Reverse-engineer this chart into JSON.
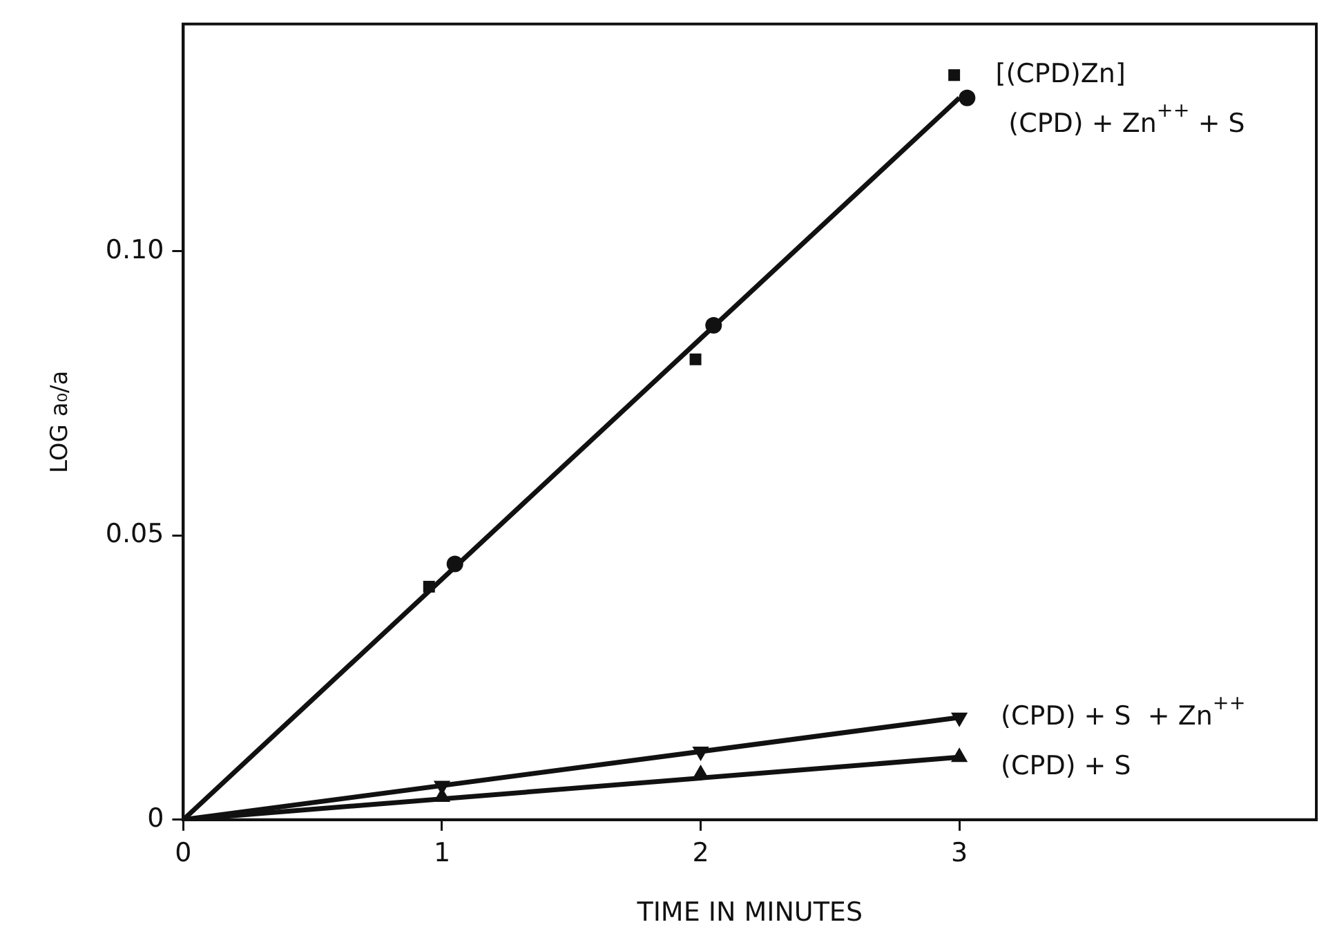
{
  "chart_data": {
    "type": "scatter",
    "xlabel": "TIME IN MINUTES",
    "ylabel": "LOG a₀/a",
    "xlim": [
      0,
      4.38
    ],
    "xticks": [
      0,
      1,
      2,
      3
    ],
    "ylim": [
      0,
      0.14
    ],
    "yticks": [
      0,
      0.05,
      {
        "value": 0.1,
        "label": "0.10"
      }
    ],
    "grid": false,
    "legend": false,
    "series": [
      {
        "name": "[(CPD)Zn]",
        "marker": "square",
        "color": "#111111",
        "x": [
          0.95,
          1.98,
          2.98
        ],
        "values": [
          0.041,
          0.081,
          0.131
        ]
      },
      {
        "name": "(CPD) + Zn$^{++}$ + S",
        "marker": "circle",
        "color": "#111111",
        "x": [
          1.05,
          2.05,
          3.03
        ],
        "values": [
          0.045,
          0.087,
          0.127
        ]
      },
      {
        "name": "(CPD) + S  + Zn$^{++}$",
        "marker": "triangle-down",
        "color": "#111111",
        "x": [
          1,
          2,
          3
        ],
        "values": [
          0.006,
          0.012,
          0.018
        ]
      },
      {
        "name": "(CPD) + S",
        "marker": "triangle",
        "color": "#111111",
        "x": [
          1,
          2,
          3
        ],
        "values": [
          0.004,
          0.008,
          0.011
        ]
      },
      {
        "type": "line",
        "marker": "none",
        "line_style": "solid",
        "color": "#111111",
        "x": [
          0,
          3
        ],
        "values": [
          0,
          0.127
        ]
      },
      {
        "type": "line",
        "marker": "none",
        "line_style": "solid",
        "color": "#111111",
        "x": [
          0,
          3
        ],
        "values": [
          0,
          0.018
        ]
      },
      {
        "type": "line",
        "marker": "none",
        "line_style": "solid",
        "color": "#111111",
        "x": [
          0,
          3
        ],
        "values": [
          0,
          0.011
        ]
      }
    ]
  }
}
